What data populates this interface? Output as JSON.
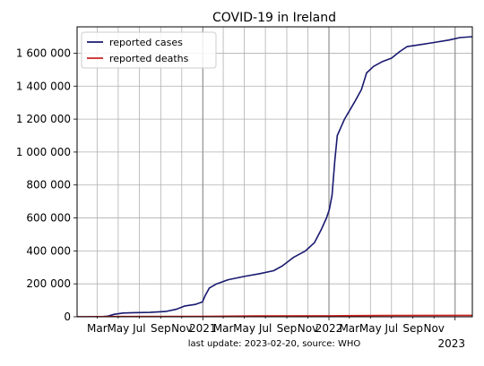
{
  "chart_data": {
    "type": "line",
    "title": "COVID-19 in Ireland",
    "footer": "last update: 2023-02-20, source: WHO",
    "xlabel": "",
    "ylabel": "",
    "x_range": [
      "2020-01-03",
      "2023-02-20"
    ],
    "ylim": [
      0,
      1760000
    ],
    "y_ticks": [
      {
        "value": 0,
        "label": "0"
      },
      {
        "value": 200000,
        "label": "200 000"
      },
      {
        "value": 400000,
        "label": "400 000"
      },
      {
        "value": 600000,
        "label": "600 000"
      },
      {
        "value": 800000,
        "label": "800 000"
      },
      {
        "value": 1000000,
        "label": "1 000 000"
      },
      {
        "value": 1200000,
        "label": "1 200 000"
      },
      {
        "value": 1400000,
        "label": "1 400 000"
      },
      {
        "value": 1600000,
        "label": "1 600 000"
      }
    ],
    "x_minor_ticks": [
      {
        "date": "2020-03-01",
        "label": "Mar"
      },
      {
        "date": "2020-05-01",
        "label": "May"
      },
      {
        "date": "2020-07-01",
        "label": "Jul"
      },
      {
        "date": "2020-09-01",
        "label": "Sep"
      },
      {
        "date": "2020-11-01",
        "label": "Nov"
      },
      {
        "date": "2021-03-01",
        "label": "Mar"
      },
      {
        "date": "2021-05-01",
        "label": "May"
      },
      {
        "date": "2021-07-01",
        "label": "Jul"
      },
      {
        "date": "2021-09-01",
        "label": "Sep"
      },
      {
        "date": "2021-11-01",
        "label": "Nov"
      },
      {
        "date": "2022-03-01",
        "label": "Mar"
      },
      {
        "date": "2022-05-01",
        "label": "May"
      },
      {
        "date": "2022-07-01",
        "label": "Jul"
      },
      {
        "date": "2022-09-01",
        "label": "Sep"
      },
      {
        "date": "2022-11-01",
        "label": "Nov"
      }
    ],
    "x_major_ticks": [
      {
        "date": "2021-01-01",
        "label": "2021"
      },
      {
        "date": "2022-01-01",
        "label": "2022"
      },
      {
        "date": "2023-01-01",
        "label": "2023"
      }
    ],
    "grid": true,
    "legend_position": "top-left",
    "series": [
      {
        "name": "reported cases",
        "color": "#191970",
        "points": [
          [
            "2020-01-03",
            0
          ],
          [
            "2020-03-10",
            0
          ],
          [
            "2020-04-01",
            4000
          ],
          [
            "2020-04-20",
            15000
          ],
          [
            "2020-05-15",
            23000
          ],
          [
            "2020-06-15",
            25000
          ],
          [
            "2020-08-01",
            26500
          ],
          [
            "2020-09-15",
            32000
          ],
          [
            "2020-10-15",
            45000
          ],
          [
            "2020-11-10",
            66000
          ],
          [
            "2020-12-10",
            75000
          ],
          [
            "2020-12-31",
            90000
          ],
          [
            "2021-01-08",
            130000
          ],
          [
            "2021-01-20",
            175000
          ],
          [
            "2021-02-10",
            200000
          ],
          [
            "2021-03-15",
            225000
          ],
          [
            "2021-05-01",
            245000
          ],
          [
            "2021-06-15",
            262000
          ],
          [
            "2021-07-25",
            280000
          ],
          [
            "2021-08-20",
            310000
          ],
          [
            "2021-09-20",
            360000
          ],
          [
            "2021-10-25",
            400000
          ],
          [
            "2021-11-20",
            450000
          ],
          [
            "2021-12-10",
            530000
          ],
          [
            "2021-12-25",
            600000
          ],
          [
            "2022-01-02",
            650000
          ],
          [
            "2022-01-10",
            740000
          ],
          [
            "2022-01-18",
            950000
          ],
          [
            "2022-01-25",
            1100000
          ],
          [
            "2022-02-15",
            1200000
          ],
          [
            "2022-03-15",
            1300000
          ],
          [
            "2022-04-05",
            1380000
          ],
          [
            "2022-04-20",
            1480000
          ],
          [
            "2022-05-10",
            1520000
          ],
          [
            "2022-06-05",
            1550000
          ],
          [
            "2022-07-01",
            1570000
          ],
          [
            "2022-07-25",
            1610000
          ],
          [
            "2022-08-15",
            1640000
          ],
          [
            "2022-09-15",
            1650000
          ],
          [
            "2022-11-01",
            1665000
          ],
          [
            "2022-12-15",
            1680000
          ],
          [
            "2023-01-15",
            1695000
          ],
          [
            "2023-02-20",
            1700000
          ]
        ]
      },
      {
        "name": "reported deaths",
        "color": "#cc2222",
        "points": [
          [
            "2020-01-03",
            0
          ],
          [
            "2020-05-01",
            1500
          ],
          [
            "2020-12-31",
            2200
          ],
          [
            "2021-06-01",
            5000
          ],
          [
            "2021-12-31",
            5900
          ],
          [
            "2022-06-01",
            7500
          ],
          [
            "2023-02-20",
            8700
          ]
        ]
      }
    ]
  }
}
